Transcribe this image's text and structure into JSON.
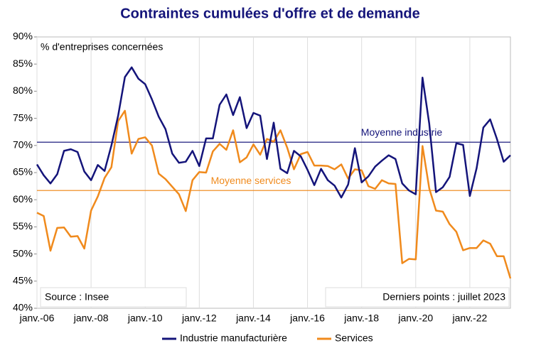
{
  "chart_data": {
    "type": "line",
    "title": "Contraintes cumulées d'offre et de demande",
    "y_label": "% d'entreprises concernées",
    "categories": [
      "janv.-06",
      null,
      null,
      null,
      null,
      null,
      null,
      null,
      "janv.-08",
      null,
      null,
      null,
      null,
      null,
      null,
      null,
      "janv.-10",
      null,
      null,
      null,
      null,
      null,
      null,
      null,
      "janv.-12",
      null,
      null,
      null,
      null,
      null,
      null,
      null,
      "janv.-14",
      null,
      null,
      null,
      null,
      null,
      null,
      null,
      "janv.-16",
      null,
      null,
      null,
      null,
      null,
      null,
      null,
      "janv.-18",
      null,
      null,
      null,
      null,
      null,
      null,
      null,
      "janv.-20",
      null,
      null,
      null,
      null,
      null,
      null,
      null,
      "janv.-22",
      null,
      null,
      null,
      null,
      null,
      null
    ],
    "series": [
      {
        "name": "Industrie manufacturière",
        "color": "#14147a",
        "values": [
          66.5,
          64.5,
          63,
          64.7,
          69,
          69.3,
          68.8,
          65.2,
          63.6,
          66.4,
          65.3,
          70,
          75.5,
          82.6,
          84.4,
          82.3,
          81.3,
          78.5,
          75.3,
          73,
          68.5,
          66.8,
          67,
          69,
          66.2,
          71.3,
          71.3,
          77.5,
          79.4,
          75.6,
          78.9,
          73.2,
          76,
          75.5,
          67.5,
          74.2,
          65.7,
          64.9,
          69,
          68,
          65.5,
          62.7,
          65.7,
          63.6,
          62.6,
          60.4,
          62.8,
          69.5,
          63.2,
          64.3,
          66.1,
          67.2,
          68.2,
          67.5,
          63,
          61.7,
          61,
          82.5,
          74,
          61.4,
          62.3,
          64.2,
          70.4,
          70.1,
          60.7,
          65.8,
          73.3,
          74.8,
          71.2,
          67,
          68.2
        ]
      },
      {
        "name": "Services",
        "color": "#f08a1c",
        "values": [
          57.6,
          57,
          50.6,
          54.8,
          54.9,
          53.2,
          53.3,
          51,
          58,
          60.6,
          64,
          66,
          74.5,
          76.4,
          68.5,
          71.2,
          71.5,
          70,
          64.8,
          63.8,
          62.4,
          61,
          57.9,
          63.6,
          65.1,
          65,
          68.9,
          70.3,
          69.2,
          72.8,
          66.9,
          67.8,
          70.2,
          68.3,
          71.2,
          70.7,
          72.8,
          69.6,
          65.6,
          68.4,
          68.8,
          66.3,
          66.3,
          66.2,
          65.6,
          66.5,
          63.9,
          65.6,
          65.4,
          62.5,
          62,
          63.6,
          63,
          62.9,
          48.3,
          49.1,
          49,
          69.9,
          62.1,
          58,
          57.8,
          55.5,
          54.1,
          50.7,
          51.1,
          51.1,
          52.5,
          51.9,
          49.6,
          49.6,
          45.5
        ]
      }
    ],
    "reference_lines": [
      {
        "label": "Moyenne industrie",
        "value": 70.6,
        "color": "#14147a"
      },
      {
        "label": "Moyenne services",
        "value": 61.7,
        "color": "#f08a1c"
      }
    ],
    "source": "Source : Insee",
    "note": "Derniers points : juillet 2023",
    "ylim": [
      40,
      90
    ],
    "yticks": [
      {
        "value": 40,
        "label": "40%"
      },
      {
        "value": 45,
        "label": "45%"
      },
      {
        "value": 50,
        "label": "50%"
      },
      {
        "value": 55,
        "label": "55%"
      },
      {
        "value": 60,
        "label": "60%"
      },
      {
        "value": 65,
        "label": "65%"
      },
      {
        "value": 70,
        "label": "70%"
      },
      {
        "value": 75,
        "label": "75%"
      },
      {
        "value": 80,
        "label": "80%"
      },
      {
        "value": 85,
        "label": "85%"
      },
      {
        "value": 90,
        "label": "90%"
      }
    ],
    "grid": "x",
    "legend": "bottom"
  }
}
